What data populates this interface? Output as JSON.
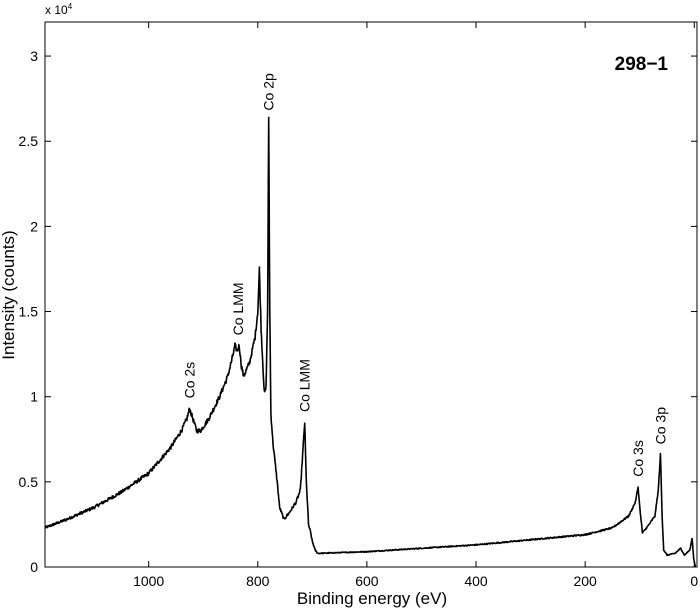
{
  "chart_data": {
    "type": "line",
    "title": "298−1",
    "xlabel": "Binding energy (eV)",
    "ylabel": "Intensity (counts)",
    "y_multiplier": "x 10",
    "y_multiplier_exp": "4",
    "xlim": [
      1190,
      -5
    ],
    "ylim": [
      0,
      3.2
    ],
    "x_reversed": true,
    "grid": false,
    "x_ticks": [
      1000,
      800,
      600,
      400,
      200,
      0
    ],
    "x_tick_labels": [
      "1000",
      "800",
      "600",
      "400",
      "200",
      "0"
    ],
    "y_ticks": [
      0,
      0.5,
      1,
      1.5,
      2,
      2.5,
      3
    ],
    "y_tick_labels": [
      "0",
      "0.5",
      "1",
      "1.5",
      "2",
      "2.5",
      "3"
    ],
    "line_color": "#000000",
    "series": [
      {
        "x": [
          1190,
          1150,
          1100,
          1050,
          1000,
          960,
          940,
          930,
          925,
          920,
          912,
          905,
          890,
          870,
          855,
          845,
          842,
          838,
          834,
          830,
          826,
          815,
          805,
          800,
          797,
          794,
          788,
          785,
          782,
          780,
          778,
          776,
          772,
          766,
          760,
          752,
          742,
          730,
          722,
          717,
          714,
          711,
          707,
          703,
          700,
          695,
          690,
          600,
          500,
          400,
          300,
          200,
          150,
          120,
          108,
          103,
          99,
          95,
          85,
          72,
          66,
          62,
          59,
          56,
          50,
          35,
          25,
          18,
          8,
          4,
          1,
          -2
        ],
        "y": [
          0.23,
          0.28,
          0.35,
          0.44,
          0.55,
          0.7,
          0.8,
          0.87,
          0.93,
          0.88,
          0.8,
          0.8,
          0.87,
          1.0,
          1.12,
          1.25,
          1.3,
          1.27,
          1.3,
          1.18,
          1.12,
          1.2,
          1.35,
          1.5,
          1.75,
          1.4,
          1.02,
          1.05,
          1.5,
          2.62,
          1.5,
          0.9,
          0.72,
          0.55,
          0.35,
          0.28,
          0.32,
          0.38,
          0.45,
          0.7,
          0.85,
          0.5,
          0.25,
          0.2,
          0.15,
          0.1,
          0.08,
          0.09,
          0.11,
          0.13,
          0.16,
          0.19,
          0.23,
          0.3,
          0.38,
          0.47,
          0.32,
          0.2,
          0.24,
          0.3,
          0.45,
          0.66,
          0.3,
          0.1,
          0.07,
          0.08,
          0.11,
          0.07,
          0.1,
          0.17,
          0.05,
          0.0
        ]
      }
    ],
    "annotations": [
      {
        "text": "Co 2s",
        "x": 925,
        "y": 0.99
      },
      {
        "text": "Co LMM",
        "x": 836,
        "y": 1.36
      },
      {
        "text": "Co 2p",
        "x": 780,
        "y": 2.68
      },
      {
        "text": "Co LMM",
        "x": 714,
        "y": 0.91
      },
      {
        "text": "Co 3s",
        "x": 103,
        "y": 0.53
      },
      {
        "text": "Co 3p",
        "x": 62,
        "y": 0.72
      }
    ]
  }
}
